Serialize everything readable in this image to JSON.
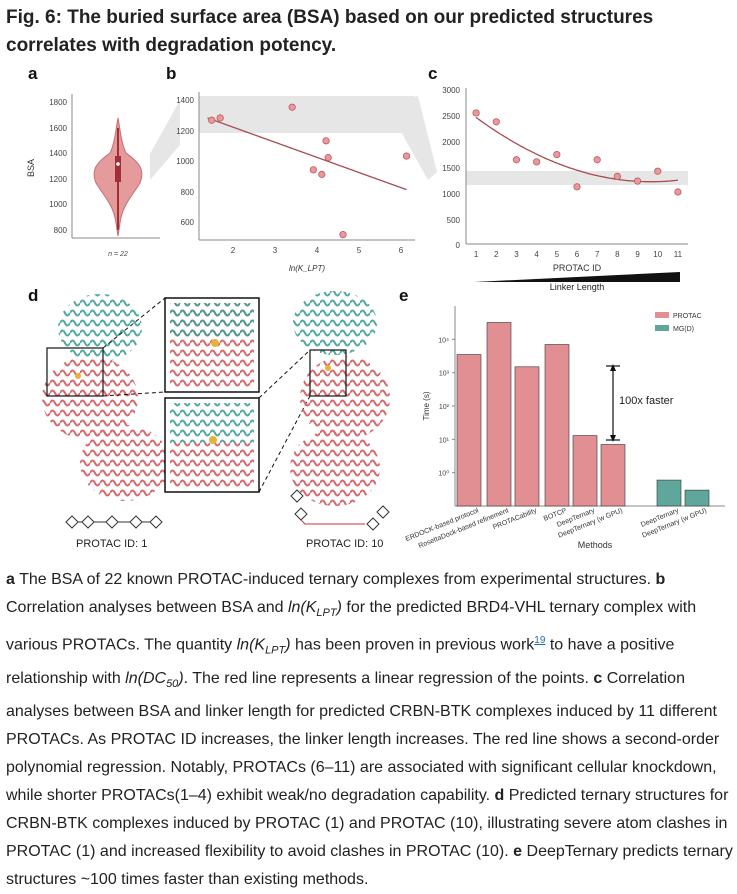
{
  "title": "Fig. 6: The buried surface area (BSA) based on our predicted structures correlates with degradation potency.",
  "panels": {
    "a": {
      "letter": "a",
      "ylabel": "BSA",
      "yticks": [
        "1800",
        "1600",
        "1400",
        "1200",
        "1000",
        "800"
      ],
      "n_label": "n = 22"
    },
    "b": {
      "letter": "b",
      "yticks": [
        "1400",
        "1200",
        "1000",
        "800",
        "600"
      ],
      "xticks": [
        "2",
        "3",
        "4",
        "5",
        "6"
      ],
      "xlabel": "ln(K_LPT)"
    },
    "c": {
      "letter": "c",
      "yticks": [
        "3000",
        "2500",
        "2000",
        "1500",
        "1000",
        "500",
        "0"
      ],
      "xticks": [
        "1",
        "2",
        "3",
        "4",
        "5",
        "6",
        "7",
        "8",
        "9",
        "10",
        "11"
      ],
      "xlabel": "PROTAC ID",
      "linker_label": "Linker Length"
    },
    "d": {
      "letter": "d",
      "label_left": "PROTAC ID: 1",
      "label_right": "PROTAC ID: 10"
    },
    "e": {
      "letter": "e",
      "ylabel": "Time (s)",
      "xlabel": "Methods",
      "annotation": "100x faster",
      "yticks": [
        "10⁴",
        "10³",
        "10²",
        "10¹",
        "10⁰"
      ]
    }
  },
  "chart_data": [
    {
      "type": "scatter",
      "panel": "b",
      "x": [
        1.6,
        1.8,
        3.5,
        4.0,
        4.2,
        4.3,
        4.35,
        4.7,
        6.2
      ],
      "y": [
        1265,
        1280,
        1350,
        940,
        910,
        1130,
        1020,
        515,
        1030
      ],
      "fit": {
        "type": "linear",
        "x": [
          1.5,
          6.2
        ],
        "y": [
          1280,
          810
        ]
      },
      "xlim": [
        1.3,
        6.4
      ],
      "ylim": [
        480,
        1450
      ]
    },
    {
      "type": "scatter",
      "panel": "c",
      "x": [
        1,
        2,
        3,
        4,
        5,
        6,
        7,
        8,
        9,
        10,
        11
      ],
      "y": [
        2520,
        2350,
        1620,
        1580,
        1720,
        1100,
        1620,
        1300,
        1210,
        1400,
        1000
      ],
      "fit": {
        "type": "poly2"
      },
      "xlim": [
        0.5,
        11.5
      ],
      "ylim": [
        0,
        3000
      ]
    },
    {
      "type": "bar",
      "panel": "e",
      "categories": [
        "FERDOCK-based protocol",
        "RosettaDock-based refinement",
        "PROTACability",
        "BOTCP",
        "DeepTernary",
        "DeepTernary (w GPU)",
        "DeepTernary",
        "DeepTernary (w GPU)"
      ],
      "series": [
        {
          "name": "PROTAC",
          "color": "#e28f93",
          "values": [
            3500,
            32000,
            1500,
            7000,
            13,
            7,
            null,
            null
          ]
        },
        {
          "name": "MG(D)",
          "color": "#5fa79d",
          "values": [
            null,
            null,
            null,
            null,
            null,
            null,
            0.6,
            0.3
          ]
        }
      ],
      "scale": "log",
      "ylim": [
        0.1,
        100000
      ]
    }
  ],
  "caption": [
    {
      "b": "a",
      "t": " The BSA of 22 known PROTAC-induced ternary complexes from experimental structures. "
    },
    {
      "b": "b",
      "t": " Correlation analyses between BSA and "
    },
    {
      "i": "ln(K"
    },
    {
      "isub": "LPT"
    },
    {
      "i": ")"
    },
    {
      "t": " for the predicted BRD4-VHL ternary complex with various PROTACs. The quantity "
    },
    {
      "i": "ln(K"
    },
    {
      "isub": "LPT"
    },
    {
      "i": ")"
    },
    {
      "t": " has been proven in previous work"
    },
    {
      "sup": "19"
    },
    {
      "t": " to have a positive relationship with "
    },
    {
      "i": "ln(DC"
    },
    {
      "isub": "50"
    },
    {
      "i": ")"
    },
    {
      "t": ". The red line represents a linear regression of the points. "
    },
    {
      "b": "c"
    },
    {
      "t": " Correlation analyses between BSA and linker length for predicted CRBN-BTK complexes induced by 11 different PROTACs. As PROTAC ID increases, the linker length increases. The red line shows a second-order polynomial regression. Notably, PROTACs (6–11) are associated with significant cellular knockdown, while shorter PROTACs(1–4) exhibit weak/no degradation capability. "
    },
    {
      "b": "d"
    },
    {
      "t": " Predicted ternary structures for CRBN-BTK complexes induced by PROTAC (1) and PROTAC (10), illustrating severe atom clashes in PROTAC (1) and increased flexibility to avoid clashes in PROTAC (10). "
    },
    {
      "b": "e"
    },
    {
      "t": " DeepTernary predicts ternary structures ~100 times faster than existing methods."
    }
  ]
}
